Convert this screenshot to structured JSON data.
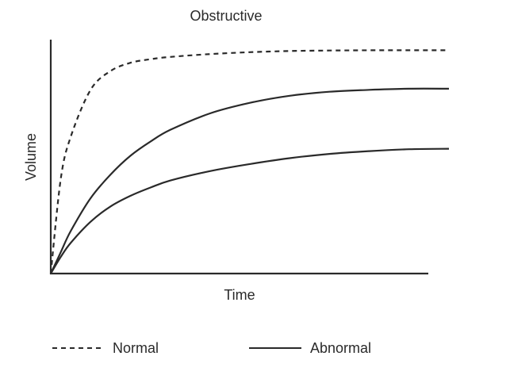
{
  "chart_data": {
    "type": "line",
    "title": "Obstructive",
    "xlabel": "Time",
    "ylabel": "Volume",
    "axis_ticks": false,
    "grid": false,
    "xlim": [
      0,
      10
    ],
    "ylim": [
      0,
      10
    ],
    "series": [
      {
        "name": "Normal",
        "style": "dashed",
        "x": [
          0,
          0.25,
          0.5,
          1,
          1.5,
          2,
          2.5,
          3,
          4,
          5,
          6,
          7,
          8,
          9,
          10
        ],
        "y": [
          0,
          4.0,
          5.8,
          7.8,
          8.6,
          8.95,
          9.1,
          9.2,
          9.32,
          9.4,
          9.45,
          9.47,
          9.48,
          9.48,
          9.48
        ]
      },
      {
        "name": "Abnormal (upper)",
        "legend_group": "Abnormal",
        "style": "solid",
        "x": [
          0,
          0.25,
          0.5,
          1,
          1.5,
          2,
          2.5,
          3,
          4,
          5,
          6,
          7,
          8,
          9,
          10
        ],
        "y": [
          0,
          0.9,
          1.8,
          3.2,
          4.2,
          5.0,
          5.6,
          6.1,
          6.8,
          7.25,
          7.55,
          7.72,
          7.8,
          7.85,
          7.85
        ]
      },
      {
        "name": "Abnormal (lower)",
        "legend_group": "Abnormal",
        "style": "solid",
        "x": [
          0,
          0.25,
          0.5,
          1,
          1.5,
          2,
          2.5,
          3,
          4,
          5,
          6,
          7,
          8,
          9,
          10
        ],
        "y": [
          0,
          0.7,
          1.3,
          2.2,
          2.85,
          3.3,
          3.65,
          3.95,
          4.35,
          4.65,
          4.9,
          5.08,
          5.2,
          5.28,
          5.3
        ]
      }
    ],
    "legend": {
      "placement": "bottom",
      "entries": [
        {
          "label": "Normal",
          "style": "dashed"
        },
        {
          "label": "Abnormal",
          "style": "solid"
        }
      ]
    }
  }
}
